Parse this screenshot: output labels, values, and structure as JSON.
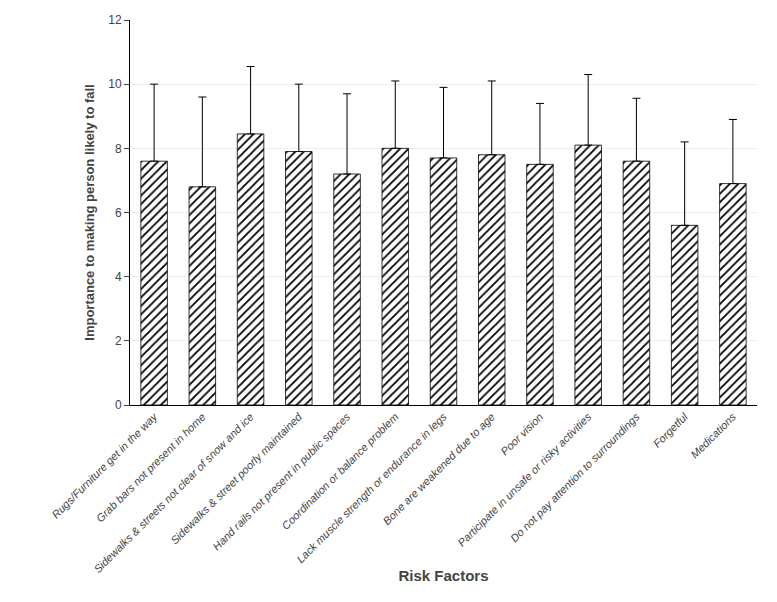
{
  "chart_data": {
    "type": "bar",
    "categories": [
      "Rugs/Furniture get in the way",
      "Grab bars not present in home",
      "Sidewalks & streets not clear of snow and ice",
      "Sidewalks & street poorly maintained",
      "Hand rails not present in public spaces",
      "Coordination or balance problem",
      "Lack muscle strength or endurance in legs",
      "Bone are weakened due to age",
      "Poor vision",
      "Participate in unsafe or risky activities",
      "Do not pay attention to surroundings",
      "Forgetful",
      "Medications"
    ],
    "values": [
      7.6,
      6.8,
      8.45,
      7.9,
      7.2,
      8.0,
      7.7,
      7.8,
      7.5,
      8.1,
      7.6,
      5.6,
      6.9
    ],
    "error_upper": [
      2.4,
      2.8,
      2.1,
      2.1,
      2.5,
      2.1,
      2.2,
      2.3,
      1.9,
      2.2,
      1.96,
      2.6,
      2.0
    ],
    "xlabel": "Risk Factors",
    "ylabel": "Importance to making person likely to fall",
    "color": "#888888",
    "ylim": [
      0,
      12
    ],
    "yticks": [
      0,
      2,
      4,
      6,
      8,
      10,
      12
    ],
    "grid": true
  }
}
